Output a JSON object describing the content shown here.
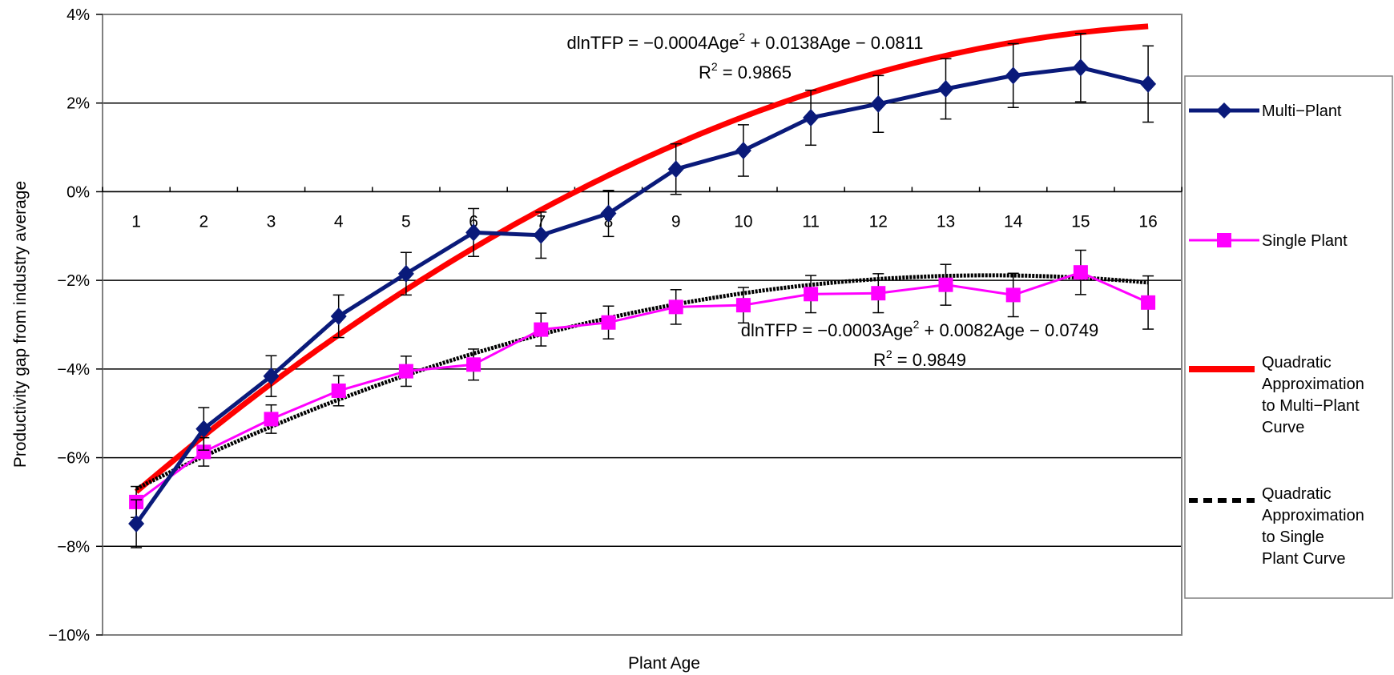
{
  "chart_data": {
    "type": "line",
    "xlabel": "Plant Age",
    "ylabel": "Productivity gap from industry average",
    "x": [
      1,
      2,
      3,
      4,
      5,
      6,
      7,
      8,
      9,
      10,
      11,
      12,
      13,
      14,
      15,
      16
    ],
    "x_tick_labels": [
      "1",
      "2",
      "3",
      "4",
      "5",
      "6",
      "7",
      "8",
      "9",
      "10",
      "11",
      "12",
      "13",
      "14",
      "15",
      "16"
    ],
    "ylim": [
      -0.1,
      0.04
    ],
    "y_ticks": [
      {
        "value": 0.04,
        "label": "4%"
      },
      {
        "value": 0.02,
        "label": "2%"
      },
      {
        "value": 0.0,
        "label": "0%"
      },
      {
        "value": -0.02,
        "label": "−2%"
      },
      {
        "value": -0.04,
        "label": "−4%"
      },
      {
        "value": -0.06,
        "label": "−6%"
      },
      {
        "value": -0.08,
        "label": "−8%"
      },
      {
        "value": -0.1,
        "label": "−10%"
      }
    ],
    "grid": true,
    "legend_position": "right",
    "series": [
      {
        "name": "Multi−Plant",
        "color": "#0a1a7a",
        "marker": "diamond",
        "values": [
          -0.0749,
          -0.0535,
          -0.0416,
          -0.0281,
          -0.0185,
          -0.0092,
          -0.0098,
          -0.0049,
          0.0051,
          0.0093,
          0.0167,
          0.0198,
          0.0232,
          0.0262,
          0.028,
          0.0243
        ],
        "error": [
          0.0054,
          0.0048,
          0.0046,
          0.0048,
          0.0048,
          0.0054,
          0.0052,
          0.0052,
          0.0057,
          0.0058,
          0.0062,
          0.0064,
          0.0068,
          0.0072,
          0.0077,
          0.0086
        ]
      },
      {
        "name": "Single Plant",
        "color": "#ff00ff",
        "marker": "square",
        "values": [
          -0.07,
          -0.0587,
          -0.0513,
          -0.0449,
          -0.0405,
          -0.039,
          -0.0311,
          -0.0295,
          -0.026,
          -0.0256,
          -0.0231,
          -0.0229,
          -0.021,
          -0.0233,
          -0.0182,
          -0.025
        ],
        "error": [
          0.0035,
          0.0032,
          0.0032,
          0.0034,
          0.0034,
          0.0035,
          0.0037,
          0.0037,
          0.0039,
          0.004,
          0.0042,
          0.0044,
          0.0046,
          0.0049,
          0.005,
          0.006
        ]
      },
      {
        "name": "Quadratic Approximation to Multi−Plant Curve",
        "color": "#ff0000",
        "style": "solid-thick",
        "coefficients": {
          "a": -0.0004,
          "b": 0.0138,
          "c": -0.0811
        }
      },
      {
        "name": "Quadratic Approximation to Single Plant Curve",
        "color": "#000000",
        "style": "dashed",
        "coefficients": {
          "a": -0.0003,
          "b": 0.0082,
          "c": -0.0749
        }
      }
    ],
    "legend_lines": [
      [
        "Multi−Plant"
      ],
      [
        "Single Plant"
      ],
      [
        "Quadratic",
        "Approximation",
        "to Multi−Plant",
        "Curve"
      ],
      [
        "Quadratic",
        "Approximation",
        "to Single",
        "Plant Curve"
      ]
    ],
    "annotations": [
      {
        "id": "multi",
        "eq_a": "dlnTFP = −0.0004Age",
        "eq_sup": "2",
        "eq_b": " + 0.0138Age − 0.0811",
        "r_a": "R",
        "r_sup": "2",
        "r_b": " = 0.9865"
      },
      {
        "id": "single",
        "eq_a": "dlnTFP = −0.0003Age",
        "eq_sup": "2",
        "eq_b": " + 0.0082Age − 0.0749",
        "r_a": "R",
        "r_sup": "2",
        "r_b": " = 0.9849"
      }
    ]
  }
}
